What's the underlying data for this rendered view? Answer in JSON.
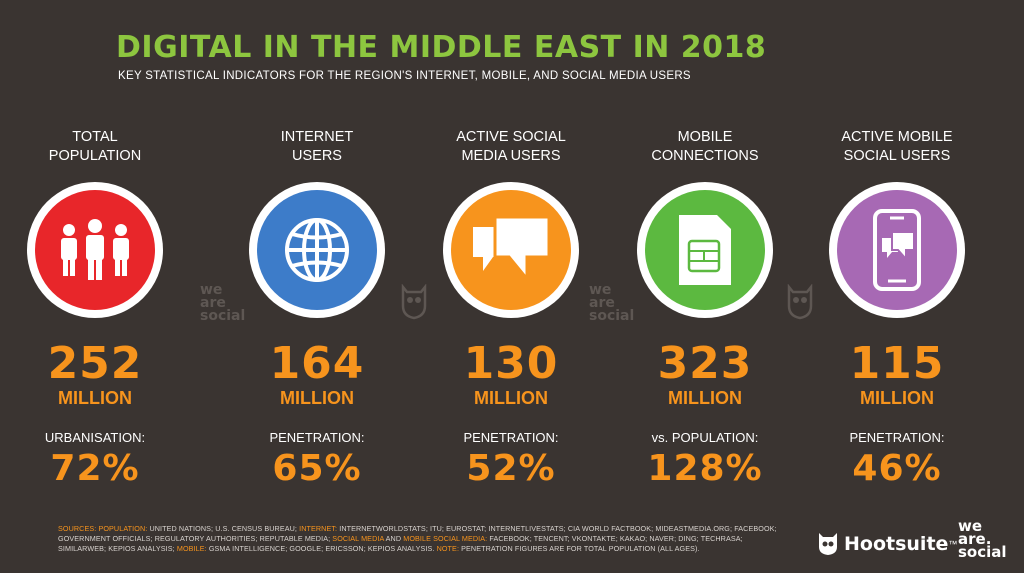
{
  "header": {
    "title": "DIGITAL IN THE MIDDLE EAST IN 2018",
    "subtitle": "KEY STATISTICAL INDICATORS FOR THE REGION'S INTERNET, MOBILE, AND SOCIAL MEDIA USERS"
  },
  "stats": [
    {
      "label": "TOTAL\nPOPULATION",
      "value": "252",
      "unit": "MILLION",
      "sub_label": "URBANISATION:",
      "sub_value": "72%",
      "color": "#e8262a",
      "icon": "people-icon"
    },
    {
      "label": "INTERNET\nUSERS",
      "value": "164",
      "unit": "MILLION",
      "sub_label": "PENETRATION:",
      "sub_value": "65%",
      "color": "#3d7cc9",
      "icon": "globe-icon"
    },
    {
      "label": "ACTIVE SOCIAL\nMEDIA USERS",
      "value": "130",
      "unit": "MILLION",
      "sub_label": "PENETRATION:",
      "sub_value": "52%",
      "color": "#f7941d",
      "icon": "chat-bubbles-icon"
    },
    {
      "label": "MOBILE\nCONNECTIONS",
      "value": "323",
      "unit": "MILLION",
      "sub_label": "vs. POPULATION:",
      "sub_value": "128%",
      "color": "#5cb940",
      "icon": "sim-card-icon"
    },
    {
      "label": "ACTIVE MOBILE\nSOCIAL USERS",
      "value": "115",
      "unit": "MILLION",
      "sub_label": "PENETRATION:",
      "sub_value": "46%",
      "color": "#a769b4",
      "icon": "mobile-chat-icon"
    }
  ],
  "watermark": {
    "line1": "we",
    "line2": "are",
    "line3": "social"
  },
  "sources": {
    "prefix": "SOURCES:",
    "pop_label": "POPULATION:",
    "pop_text": " UNITED NATIONS; U.S. CENSUS BUREAU; ",
    "internet_label": "INTERNET:",
    "internet_text": " INTERNETWORLDSTATS; ITU; EUROSTAT; INTERNETLIVESTATS; CIA WORLD FACTBOOK; MIDEASTMEDIA.ORG; FACEBOOK; GOVERNMENT OFFICIALS; REGULATORY AUTHORITIES; REPUTABLE MEDIA; ",
    "social_label": "SOCIAL MEDIA",
    "and_text": " AND ",
    "mobile_social_label": "MOBILE SOCIAL MEDIA:",
    "social_text": " FACEBOOK; TENCENT; VKONTAKTE; KAKAO; NAVER; DING; TECHRASA; SIMILARWEB; KEPIOS ANALYSIS; ",
    "mobile_label": "MOBILE:",
    "mobile_text": " GSMA INTELLIGENCE; GOOGLE; ERICSSON; KEPIOS ANALYSIS. ",
    "note_label": "NOTE:",
    "note_text": " PENETRATION FIGURES ARE FOR TOTAL POPULATION (ALL AGES)."
  },
  "footer": {
    "hootsuite": "Hootsuite",
    "trademark": "™",
    "was_line1": "we",
    "was_line2": "are.",
    "was_line3": "social"
  }
}
